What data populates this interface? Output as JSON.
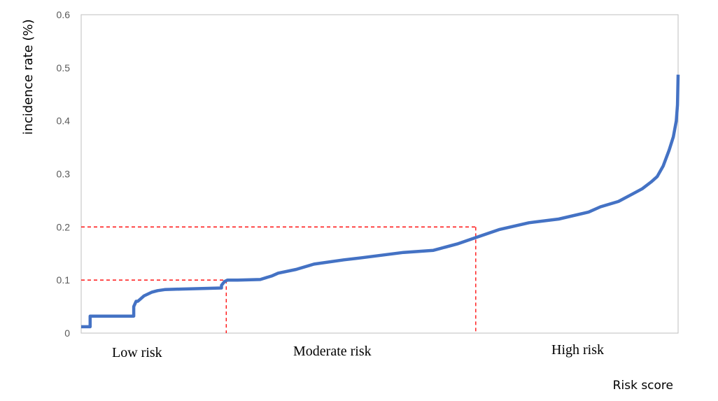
{
  "chart_data": {
    "type": "line",
    "title": "",
    "xlabel": "Risk score",
    "ylabel": "incidence rate (%)",
    "ylim": [
      0,
      0.6
    ],
    "yticks": [
      "0",
      "0.1",
      "0.2",
      "0.3",
      "0.4",
      "0.5",
      "0.6"
    ],
    "grid": false,
    "x_tick_labels_shown": false,
    "region_labels": [
      "Low risk",
      "Moderate risk",
      "High risk"
    ],
    "thresholds": [
      {
        "y": 0.1,
        "x_fraction": 0.243
      },
      {
        "y": 0.2,
        "x_fraction": 0.661
      }
    ],
    "colors": {
      "series": "#4472C4",
      "threshold": "#FF0000",
      "axis": "#BFBFBF"
    },
    "series": [
      {
        "x": [
          0,
          0.015,
          0.015,
          0.088,
          0.088,
          0.092,
          0.095,
          0.105,
          0.118,
          0.128,
          0.14,
          0.165,
          0.235,
          0.235,
          0.24,
          0.245,
          0.262,
          0.3,
          0.32,
          0.33,
          0.36,
          0.39,
          0.44,
          0.47,
          0.54,
          0.59,
          0.6,
          0.63,
          0.661,
          0.7,
          0.75,
          0.8,
          0.85,
          0.87,
          0.9,
          0.92,
          0.94,
          0.955,
          0.965,
          0.975,
          0.985,
          0.992,
          0.997,
          0.999,
          1.0
        ],
        "values": [
          0.012,
          0.012,
          0.032,
          0.032,
          0.05,
          0.06,
          0.06,
          0.07,
          0.077,
          0.08,
          0.082,
          0.083,
          0.085,
          0.09,
          0.097,
          0.1,
          0.1,
          0.101,
          0.108,
          0.113,
          0.12,
          0.13,
          0.138,
          0.142,
          0.152,
          0.156,
          0.159,
          0.168,
          0.18,
          0.195,
          0.208,
          0.215,
          0.228,
          0.238,
          0.248,
          0.26,
          0.272,
          0.285,
          0.295,
          0.315,
          0.345,
          0.37,
          0.4,
          0.43,
          0.487
        ]
      }
    ]
  }
}
